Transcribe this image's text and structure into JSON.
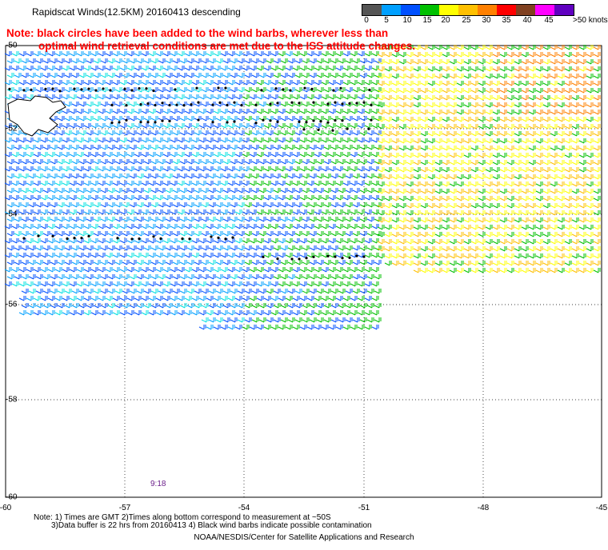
{
  "header": {
    "title": "Rapidscat Winds(12.5KM) 20160413 descending",
    "warning_line1": "Note: black circles have been added to the wind barbs, wherever less than",
    "warning_line2": "optimal wind retrieval conditions are met due to the ISS attitude changes."
  },
  "color_scale": {
    "ticks": [
      "0",
      "5",
      "10",
      "15",
      "20",
      "25",
      "30",
      "35",
      "40",
      "45"
    ],
    "max_label": ">50 knots",
    "colors": [
      "#555555",
      "#00a0ff",
      "#0050ff",
      "#00c000",
      "#ffff00",
      "#ffc000",
      "#ff8000",
      "#ff0000",
      "#804020",
      "#ff00ff",
      "#6000c0"
    ]
  },
  "map": {
    "x_labels": [
      "-60",
      "-57",
      "-54",
      "-51",
      "-48",
      "-45"
    ],
    "y_labels": [
      "-50",
      "-52",
      "-54",
      "-56",
      "-58",
      "-60"
    ],
    "lon_range": [
      -60,
      -45
    ],
    "lat_range": [
      -50,
      -60
    ],
    "time_label": "9:18"
  },
  "footer": {
    "note1": "Note: 1) Times are GMT 2)Times along bottom correspond to measurement at ~50S",
    "note2": "3)Data buffer is 22 hrs from 20160413 4) Black wind barbs indicate possible contamination",
    "credit": "NOAA/NESDIS/Center for Satellite Applications and Research"
  }
}
